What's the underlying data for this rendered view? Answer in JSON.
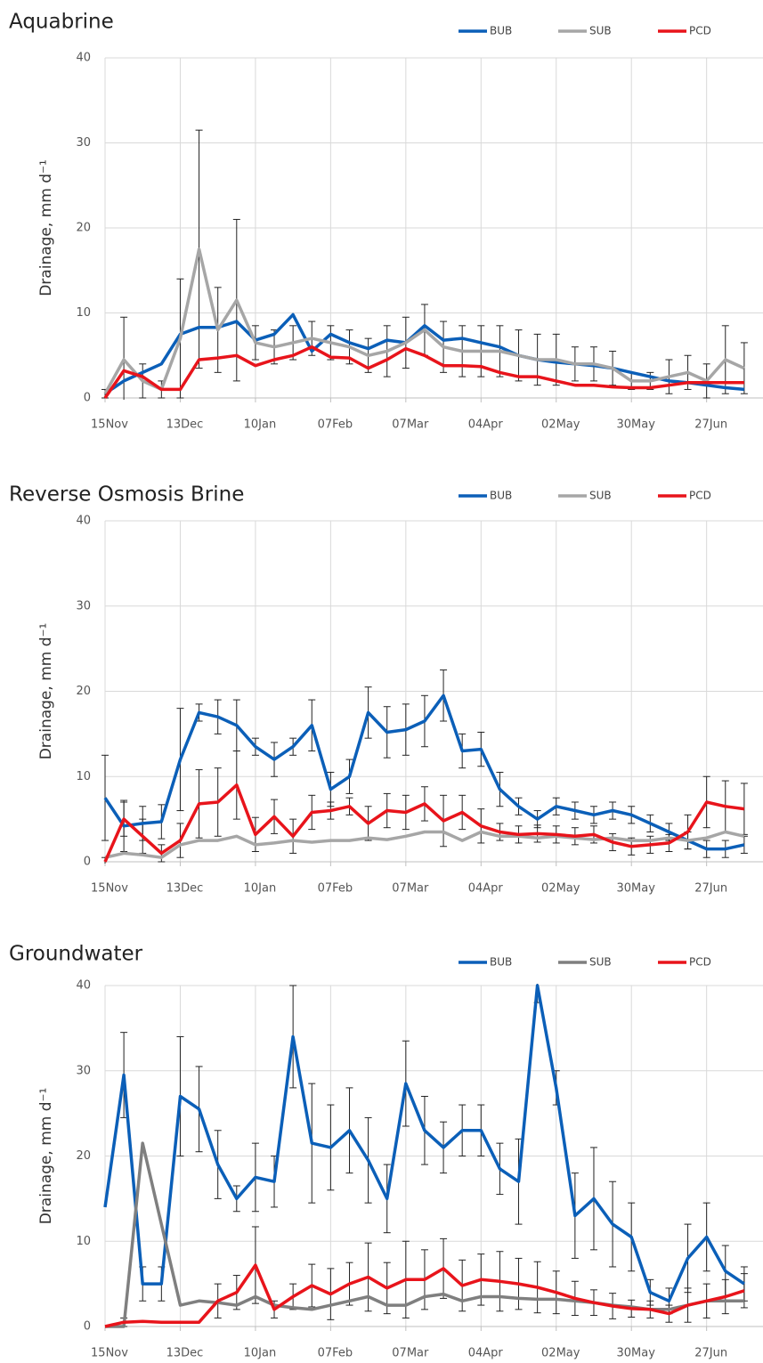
{
  "chart_data": [
    {
      "type": "line",
      "title": "Aquabrine",
      "y_label": "Drainage,  mm d⁻¹",
      "grid": true,
      "legend": "top-right",
      "x": [
        0,
        7,
        14,
        21,
        28,
        35,
        42,
        49,
        56,
        63,
        70,
        77,
        84,
        91,
        98,
        105,
        112,
        119,
        126,
        133,
        140,
        147,
        154,
        161,
        168,
        175,
        182,
        189,
        196,
        203,
        210,
        217,
        224,
        231,
        238
      ],
      "xlim": [
        0,
        245
      ],
      "xticks": [
        {
          "value": 0,
          "label": "15Nov"
        },
        {
          "value": 28,
          "label": "13Dec"
        },
        {
          "value": 56,
          "label": "10Jan"
        },
        {
          "value": 84,
          "label": "07Feb"
        },
        {
          "value": 112,
          "label": "07Mar"
        },
        {
          "value": 140,
          "label": "04Apr"
        },
        {
          "value": 168,
          "label": "02May"
        },
        {
          "value": 196,
          "label": "30May"
        },
        {
          "value": 224,
          "label": "27Jun"
        }
      ],
      "ylim": [
        0,
        40
      ],
      "yticks": [
        0,
        10,
        20,
        30,
        40
      ],
      "series": [
        {
          "name": "BUB",
          "color": "#0b5fb8",
          "values": [
            0.5,
            2,
            3,
            4,
            7.5,
            8.3,
            8.3,
            9,
            6.8,
            7.5,
            9.8,
            5.5,
            7.5,
            6.5,
            5.8,
            6.8,
            6.5,
            8.5,
            6.8,
            7,
            6.5,
            6,
            5,
            4.5,
            4.2,
            4,
            3.8,
            3.5,
            3,
            2.5,
            2,
            1.8,
            1.5,
            1.2,
            1
          ]
        },
        {
          "name": "SUB",
          "color": "#a6a6a6",
          "values": [
            0.5,
            4.5,
            2,
            1,
            7,
            17.5,
            8,
            11.5,
            6.5,
            6,
            6.5,
            7,
            6.5,
            6,
            5,
            5.5,
            6.5,
            8,
            6,
            5.5,
            5.5,
            5.5,
            5,
            4.5,
            4.5,
            4,
            4,
            3.5,
            2,
            2,
            2.5,
            3,
            2,
            4.5,
            3.5
          ],
          "errors": [
            0.5,
            5,
            2,
            1,
            7,
            14,
            5,
            9.5,
            2,
            2,
            2,
            2,
            2,
            2,
            2,
            3,
            3,
            3,
            3,
            3,
            3,
            3,
            3,
            3,
            3,
            2,
            2,
            2,
            1,
            1,
            2,
            2,
            2,
            4,
            3
          ]
        },
        {
          "name": "PCD",
          "color": "#e8141b",
          "values": [
            0,
            3.2,
            2.5,
            1,
            1,
            4.5,
            4.7,
            5,
            3.8,
            4.5,
            5,
            6,
            4.8,
            4.7,
            3.5,
            4.5,
            5.8,
            5,
            3.8,
            3.8,
            3.7,
            3,
            2.5,
            2.5,
            2,
            1.5,
            1.5,
            1.3,
            1.2,
            1.2,
            1.5,
            1.8,
            1.8,
            1.8,
            1.8
          ]
        }
      ]
    },
    {
      "type": "line",
      "title": "Reverse Osmosis Brine",
      "y_label": "Drainage,  mm d⁻¹",
      "grid": true,
      "legend": "top-right",
      "x": [
        0,
        7,
        14,
        21,
        28,
        35,
        42,
        49,
        56,
        63,
        70,
        77,
        84,
        91,
        98,
        105,
        112,
        119,
        126,
        133,
        140,
        147,
        154,
        161,
        168,
        175,
        182,
        189,
        196,
        203,
        210,
        217,
        224,
        231,
        238
      ],
      "xlim": [
        0,
        245
      ],
      "xticks": [
        {
          "value": 0,
          "label": "15Nov"
        },
        {
          "value": 28,
          "label": "13Dec"
        },
        {
          "value": 56,
          "label": "10Jan"
        },
        {
          "value": 84,
          "label": "07Feb"
        },
        {
          "value": 112,
          "label": "07Mar"
        },
        {
          "value": 140,
          "label": "04Apr"
        },
        {
          "value": 168,
          "label": "02May"
        },
        {
          "value": 196,
          "label": "30May"
        },
        {
          "value": 224,
          "label": "27Jun"
        }
      ],
      "ylim": [
        0,
        40
      ],
      "yticks": [
        0,
        10,
        20,
        30,
        40
      ],
      "series": [
        {
          "name": "BUB",
          "color": "#0b5fb8",
          "values": [
            7.5,
            4.2,
            4.5,
            4.7,
            12,
            17.5,
            17,
            16,
            13.5,
            12,
            13.5,
            16,
            8.5,
            10,
            17.5,
            15.2,
            15.5,
            16.5,
            19.5,
            13,
            13.2,
            8.5,
            6.5,
            5,
            6.5,
            6,
            5.5,
            6,
            5.5,
            4.5,
            3.5,
            2.5,
            1.5,
            1.5,
            2
          ],
          "errors": [
            5,
            3,
            2,
            2,
            6,
            1,
            2,
            3,
            1,
            2,
            1,
            3,
            2,
            2,
            3,
            3,
            3,
            3,
            3,
            2,
            2,
            2,
            1,
            1,
            1,
            1,
            1,
            1,
            1,
            1,
            1,
            1,
            1,
            1,
            1
          ]
        },
        {
          "name": "SUB",
          "color": "#a6a6a6",
          "values": [
            0.5,
            1,
            0.8,
            0.5,
            2,
            2.5,
            2.5,
            3,
            2,
            2.2,
            2.5,
            2.3,
            2.5,
            2.5,
            2.8,
            2.6,
            3,
            3.5,
            3.5,
            2.5,
            3.5,
            3,
            3,
            2.8,
            3,
            2.8,
            2.6,
            2.8,
            2.5,
            2.5,
            2.8,
            2.5,
            2.8,
            3.5,
            3
          ]
        },
        {
          "name": "PCD",
          "color": "#e8141b",
          "values": [
            0,
            5,
            3,
            1,
            2.5,
            6.8,
            7,
            9,
            3.2,
            5.3,
            3,
            5.8,
            6,
            6.5,
            4.5,
            6,
            5.8,
            6.8,
            4.8,
            5.8,
            4.2,
            3.5,
            3.2,
            3.3,
            3.2,
            3,
            3.2,
            2.3,
            1.8,
            2,
            2.2,
            3.5,
            7,
            6.5,
            6.2
          ],
          "errors": [
            0.5,
            2,
            2,
            1,
            2,
            4,
            4,
            4,
            2,
            2,
            2,
            2,
            1,
            1,
            2,
            2,
            2,
            2,
            3,
            2,
            2,
            1,
            1,
            1,
            1,
            1,
            1,
            1,
            1,
            1,
            1,
            2,
            3,
            3,
            3
          ]
        }
      ]
    },
    {
      "type": "line",
      "title": "Groundwater",
      "y_label": "Drainage,  mm d⁻¹",
      "grid": true,
      "legend": "top-right",
      "x": [
        0,
        7,
        14,
        21,
        28,
        35,
        42,
        49,
        56,
        63,
        70,
        77,
        84,
        91,
        98,
        105,
        112,
        119,
        126,
        133,
        140,
        147,
        154,
        161,
        168,
        175,
        182,
        189,
        196,
        203,
        210,
        217,
        224,
        231,
        238
      ],
      "xlim": [
        0,
        245
      ],
      "xticks": [
        {
          "value": 0,
          "label": "15Nov"
        },
        {
          "value": 28,
          "label": "13Dec"
        },
        {
          "value": 56,
          "label": "10Jan"
        },
        {
          "value": 84,
          "label": "07Feb"
        },
        {
          "value": 112,
          "label": "07Mar"
        },
        {
          "value": 140,
          "label": "04Apr"
        },
        {
          "value": 168,
          "label": "02May"
        },
        {
          "value": 196,
          "label": "30May"
        },
        {
          "value": 224,
          "label": "27Jun"
        }
      ],
      "ylim": [
        0,
        40
      ],
      "yticks": [
        0,
        10,
        20,
        30,
        40
      ],
      "series": [
        {
          "name": "BUB",
          "color": "#0b5fb8",
          "values": [
            14,
            29.5,
            5,
            5,
            27,
            25.5,
            19,
            15,
            17.5,
            17,
            34,
            21.5,
            21,
            23,
            19.5,
            15,
            28.5,
            23,
            21,
            23,
            23,
            18.5,
            17,
            40,
            28,
            13,
            15,
            12,
            10.5,
            4,
            3,
            8,
            10.5,
            6.5,
            5
          ],
          "errors": [
            null,
            5,
            2,
            2,
            7,
            5,
            4,
            1.5,
            4,
            3,
            6,
            7,
            5,
            5,
            5,
            4,
            5,
            4,
            3,
            3,
            3,
            3,
            5,
            2,
            2,
            5,
            6,
            5,
            4,
            1.5,
            1.5,
            4,
            4,
            3,
            2
          ]
        },
        {
          "name": "SUB",
          "color": "#7f7f7f",
          "values": [
            0,
            0,
            21.5,
            12,
            2.5,
            3,
            2.8,
            2.5,
            3.5,
            2.5,
            2.2,
            2,
            2.5,
            3,
            3.5,
            2.5,
            2.5,
            3.5,
            3.8,
            3,
            3.5,
            3.5,
            3.3,
            3.2,
            3.2,
            3,
            2.8,
            2.5,
            2.3,
            2,
            2,
            2.5,
            3,
            3,
            3
          ]
        },
        {
          "name": "PCD",
          "color": "#e8141b",
          "values": [
            0,
            0.5,
            0.6,
            0.5,
            0.5,
            0.5,
            3,
            4,
            7.2,
            2,
            3.5,
            4.8,
            3.8,
            5,
            5.8,
            4.5,
            5.5,
            5.5,
            6.8,
            4.8,
            5.5,
            5.3,
            5,
            4.6,
            4,
            3.3,
            2.8,
            2.4,
            2.1,
            2,
            1.5,
            2.5,
            3,
            3.5,
            4.2
          ],
          "errors": [
            null,
            0.5,
            null,
            null,
            null,
            null,
            2,
            2,
            4.5,
            1,
            1.5,
            2.5,
            3,
            2.5,
            4,
            3,
            4.5,
            3.5,
            3.5,
            3,
            3,
            3.5,
            3,
            3,
            2.5,
            2,
            1.5,
            1.5,
            1,
            1,
            1,
            2,
            2,
            2,
            2
          ]
        }
      ]
    }
  ]
}
